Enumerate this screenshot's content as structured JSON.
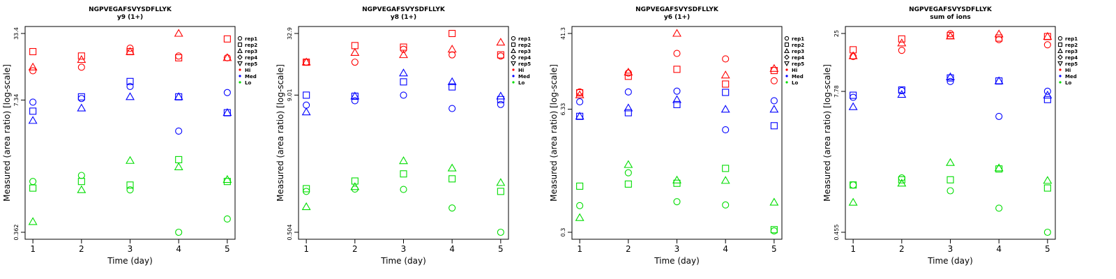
{
  "figure": {
    "ylabel": "Measured (area ratio) [log-scale]",
    "xlabel": "Time (day)"
  },
  "legend": {
    "entries": [
      {
        "label": "rep1",
        "symbol": "circle"
      },
      {
        "label": "rep2",
        "symbol": "square"
      },
      {
        "label": "rep3",
        "symbol": "triangle-up"
      },
      {
        "label": "rep4",
        "symbol": "diamond"
      },
      {
        "label": "rep5",
        "symbol": "triangle-down"
      },
      {
        "label": "Hi",
        "symbol": "dot",
        "color": "#ff0000"
      },
      {
        "label": "Med",
        "symbol": "dot",
        "color": "#0000ff"
      },
      {
        "label": "Lo",
        "symbol": "dot",
        "color": "#00dd00"
      }
    ]
  },
  "colors": {
    "Hi": "#ff0000",
    "Med": "#0000ff",
    "Lo": "#00dd00"
  },
  "chart_data": [
    {
      "type": "scatter",
      "title": "NGPVEGAFSVYSDFLLYK",
      "subtitle": "y9 (1+)",
      "xlabel": "Time (day)",
      "ylabel": "Measured (area ratio) [log-scale]",
      "yscale": "log",
      "ylim": [
        0.362,
        33.4
      ],
      "yticks": [
        "0.362",
        "7.34",
        "33.4"
      ],
      "xticks": [
        1,
        2,
        3,
        4,
        5
      ],
      "series": [
        {
          "group": "Hi",
          "rep": "rep1",
          "points": [
            [
              1,
              14.3
            ],
            [
              2,
              15.5
            ],
            [
              3,
              23.9
            ],
            [
              4,
              20.0
            ],
            [
              5,
              19.2
            ]
          ]
        },
        {
          "group": "Hi",
          "rep": "rep2",
          "points": [
            [
              1,
              22.1
            ],
            [
              2,
              20.0
            ],
            [
              3,
              22.1
            ],
            [
              4,
              19.2
            ],
            [
              5,
              29.5
            ]
          ]
        },
        {
          "group": "Hi",
          "rep": "rep3",
          "points": [
            [
              1,
              15.5
            ],
            [
              2,
              18.4
            ],
            [
              3,
              22.1
            ],
            [
              4,
              33.4
            ],
            [
              5,
              19.2
            ]
          ]
        },
        {
          "group": "Med",
          "rep": "rep1",
          "points": [
            [
              1,
              7.0
            ],
            [
              2,
              7.6
            ],
            [
              3,
              10.0
            ],
            [
              4,
              3.62
            ],
            [
              5,
              8.7
            ]
          ]
        },
        {
          "group": "Med",
          "rep": "rep2",
          "points": [
            [
              1,
              5.7
            ],
            [
              2,
              7.9
            ],
            [
              3,
              11.2
            ],
            [
              4,
              7.9
            ],
            [
              5,
              5.5
            ]
          ]
        },
        {
          "group": "Med",
          "rep": "rep3",
          "points": [
            [
              1,
              4.6
            ],
            [
              2,
              6.1
            ],
            [
              3,
              7.9
            ],
            [
              4,
              7.9
            ],
            [
              5,
              5.5
            ]
          ]
        },
        {
          "group": "Lo",
          "rep": "rep1",
          "points": [
            [
              1,
              1.15
            ],
            [
              2,
              1.32
            ],
            [
              3,
              0.95
            ],
            [
              4,
              0.362
            ],
            [
              5,
              0.49
            ]
          ]
        },
        {
          "group": "Lo",
          "rep": "rep2",
          "points": [
            [
              1,
              0.99
            ],
            [
              2,
              1.15
            ],
            [
              3,
              1.06
            ],
            [
              4,
              1.89
            ],
            [
              5,
              1.15
            ]
          ]
        },
        {
          "group": "Lo",
          "rep": "rep3",
          "points": [
            [
              1,
              0.46
            ],
            [
              2,
              0.95
            ],
            [
              3,
              1.85
            ],
            [
              4,
              1.6
            ],
            [
              5,
              1.2
            ]
          ]
        }
      ]
    },
    {
      "type": "scatter",
      "title": "NGPVEGAFSVYSDFLLYK",
      "subtitle": "y8 (1+)",
      "xlabel": "Time (day)",
      "ylabel": "Measured (area ratio) [log-scale]",
      "yscale": "log",
      "ylim": [
        0.504,
        32.9
      ],
      "yticks": [
        "0.504",
        "9.01",
        "32.9"
      ],
      "xticks": [
        1,
        2,
        3,
        4,
        5
      ],
      "series": [
        {
          "group": "Hi",
          "rep": "rep1",
          "points": [
            [
              1,
              18.0
            ],
            [
              2,
              18.0
            ],
            [
              3,
              23.6
            ],
            [
              4,
              21.0
            ],
            [
              5,
              20.5
            ]
          ]
        },
        {
          "group": "Hi",
          "rep": "rep2",
          "points": [
            [
              1,
              18.0
            ],
            [
              2,
              25.5
            ],
            [
              3,
              24.7
            ],
            [
              4,
              32.9
            ],
            [
              5,
              21.0
            ]
          ]
        },
        {
          "group": "Hi",
          "rep": "rep3",
          "points": [
            [
              1,
              18.0
            ],
            [
              2,
              22.0
            ],
            [
              3,
              21.0
            ],
            [
              4,
              23.6
            ],
            [
              5,
              27.3
            ]
          ]
        },
        {
          "group": "Med",
          "rep": "rep1",
          "points": [
            [
              1,
              7.3
            ],
            [
              2,
              8.0
            ],
            [
              3,
              9.0
            ],
            [
              4,
              6.8
            ],
            [
              5,
              7.4
            ]
          ]
        },
        {
          "group": "Med",
          "rep": "rep2",
          "points": [
            [
              1,
              9.0
            ],
            [
              2,
              8.8
            ],
            [
              3,
              11.9
            ],
            [
              4,
              10.7
            ],
            [
              5,
              8.2
            ]
          ]
        },
        {
          "group": "Med",
          "rep": "rep3",
          "points": [
            [
              1,
              6.3
            ],
            [
              2,
              8.8
            ],
            [
              3,
              14.3
            ],
            [
              4,
              11.9
            ],
            [
              5,
              8.8
            ]
          ]
        },
        {
          "group": "Lo",
          "rep": "rep1",
          "points": [
            [
              1,
              1.19
            ],
            [
              2,
              1.25
            ],
            [
              3,
              1.24
            ],
            [
              4,
              0.84
            ],
            [
              5,
              0.504
            ]
          ]
        },
        {
          "group": "Lo",
          "rep": "rep2",
          "points": [
            [
              1,
              1.26
            ],
            [
              2,
              1.48
            ],
            [
              3,
              1.72
            ],
            [
              4,
              1.55
            ],
            [
              5,
              1.19
            ]
          ]
        },
        {
          "group": "Lo",
          "rep": "rep3",
          "points": [
            [
              1,
              0.86
            ],
            [
              2,
              1.31
            ],
            [
              3,
              2.26
            ],
            [
              4,
              1.94
            ],
            [
              5,
              1.43
            ]
          ]
        }
      ]
    },
    {
      "type": "scatter",
      "title": "NGPVEGAFSVYSDFLLYK",
      "subtitle": "y6 (1+)",
      "xlabel": "Time (day)",
      "ylabel": "Measured (area ratio) [log-scale]",
      "yscale": "log",
      "ylim": [
        0.3,
        41.3
      ],
      "yticks": [
        "0.3",
        "6.33",
        "41.3"
      ],
      "xticks": [
        1,
        2,
        3,
        4,
        5
      ],
      "series": [
        {
          "group": "Hi",
          "rep": "rep1",
          "points": [
            [
              1,
              9.7
            ],
            [
              2,
              15.5
            ],
            [
              3,
              25.2
            ],
            [
              4,
              22.0
            ],
            [
              5,
              12.8
            ]
          ]
        },
        {
          "group": "Hi",
          "rep": "rep2",
          "points": [
            [
              1,
              9.5
            ],
            [
              2,
              14.3
            ],
            [
              3,
              17.0
            ],
            [
              4,
              11.8
            ],
            [
              5,
              16.5
            ]
          ]
        },
        {
          "group": "Hi",
          "rep": "rep3",
          "points": [
            [
              1,
              9.0
            ],
            [
              2,
              15.8
            ],
            [
              3,
              41.3
            ],
            [
              4,
              14.7
            ],
            [
              5,
              17.3
            ]
          ]
        },
        {
          "group": "Med",
          "rep": "rep1",
          "points": [
            [
              1,
              7.6
            ],
            [
              2,
              9.7
            ],
            [
              3,
              9.9
            ],
            [
              4,
              3.8
            ],
            [
              5,
              7.8
            ]
          ]
        },
        {
          "group": "Med",
          "rep": "rep2",
          "points": [
            [
              1,
              5.3
            ],
            [
              2,
              5.8
            ],
            [
              3,
              7.1
            ],
            [
              4,
              9.6
            ],
            [
              5,
              4.2
            ]
          ]
        },
        {
          "group": "Med",
          "rep": "rep3",
          "points": [
            [
              1,
              5.3
            ],
            [
              2,
              6.5
            ],
            [
              3,
              8.0
            ],
            [
              4,
              6.3
            ],
            [
              5,
              6.3
            ]
          ]
        },
        {
          "group": "Lo",
          "rep": "rep1",
          "points": [
            [
              1,
              0.58
            ],
            [
              2,
              1.31
            ],
            [
              3,
              0.64
            ],
            [
              4,
              0.59
            ],
            [
              5,
              0.31
            ]
          ]
        },
        {
          "group": "Lo",
          "rep": "rep2",
          "points": [
            [
              1,
              0.94
            ],
            [
              2,
              0.99
            ],
            [
              3,
              1.01
            ],
            [
              4,
              1.46
            ],
            [
              5,
              0.32
            ]
          ]
        },
        {
          "group": "Lo",
          "rep": "rep3",
          "points": [
            [
              1,
              0.43
            ],
            [
              2,
              1.6
            ],
            [
              3,
              1.09
            ],
            [
              4,
              1.08
            ],
            [
              5,
              0.63
            ]
          ]
        }
      ]
    },
    {
      "type": "scatter",
      "title": "NGPVEGAFSVYSDFLLYK",
      "subtitle": "sum of ions",
      "xlabel": "Time (day)",
      "ylabel": "Measured (area ratio) [log-scale]",
      "yscale": "log",
      "ylim": [
        0.455,
        25
      ],
      "yticks": [
        "0.455",
        "7.78",
        "25"
      ],
      "xticks": [
        1,
        2,
        3,
        4,
        5
      ],
      "series": [
        {
          "group": "Hi",
          "rep": "rep1",
          "points": [
            [
              1,
              15.7
            ],
            [
              2,
              17.8
            ],
            [
              3,
              24.9
            ],
            [
              4,
              22.1
            ],
            [
              5,
              19.9
            ]
          ]
        },
        {
          "group": "Hi",
          "rep": "rep2",
          "points": [
            [
              1,
              18.0
            ],
            [
              2,
              22.4
            ],
            [
              3,
              24.0
            ],
            [
              4,
              22.8
            ],
            [
              5,
              23.5
            ]
          ]
        },
        {
          "group": "Hi",
          "rep": "rep3",
          "points": [
            [
              1,
              15.9
            ],
            [
              2,
              20.6
            ],
            [
              3,
              23.7
            ],
            [
              4,
              24.7
            ],
            [
              5,
              23.5
            ]
          ]
        },
        {
          "group": "Med",
          "rep": "rep1",
          "points": [
            [
              1,
              6.9
            ],
            [
              2,
              7.9
            ],
            [
              3,
              9.5
            ],
            [
              4,
              4.7
            ],
            [
              5,
              7.8
            ]
          ]
        },
        {
          "group": "Med",
          "rep": "rep2",
          "points": [
            [
              1,
              7.2
            ],
            [
              2,
              8.0
            ],
            [
              3,
              10.2
            ],
            [
              4,
              9.6
            ],
            [
              5,
              6.6
            ]
          ]
        },
        {
          "group": "Med",
          "rep": "rep3",
          "points": [
            [
              1,
              5.7
            ],
            [
              2,
              7.3
            ],
            [
              3,
              10.4
            ],
            [
              4,
              9.6
            ],
            [
              5,
              7.2
            ]
          ]
        },
        {
          "group": "Lo",
          "rep": "rep1",
          "points": [
            [
              1,
              1.18
            ],
            [
              2,
              1.36
            ],
            [
              3,
              1.05
            ],
            [
              4,
              0.74
            ],
            [
              5,
              0.455
            ]
          ]
        },
        {
          "group": "Lo",
          "rep": "rep2",
          "points": [
            [
              1,
              1.18
            ],
            [
              2,
              1.31
            ],
            [
              3,
              1.31
            ],
            [
              4,
              1.63
            ],
            [
              5,
              1.11
            ]
          ]
        },
        {
          "group": "Lo",
          "rep": "rep3",
          "points": [
            [
              1,
              0.83
            ],
            [
              2,
              1.22
            ],
            [
              3,
              1.85
            ],
            [
              4,
              1.66
            ],
            [
              5,
              1.29
            ]
          ]
        }
      ]
    }
  ]
}
